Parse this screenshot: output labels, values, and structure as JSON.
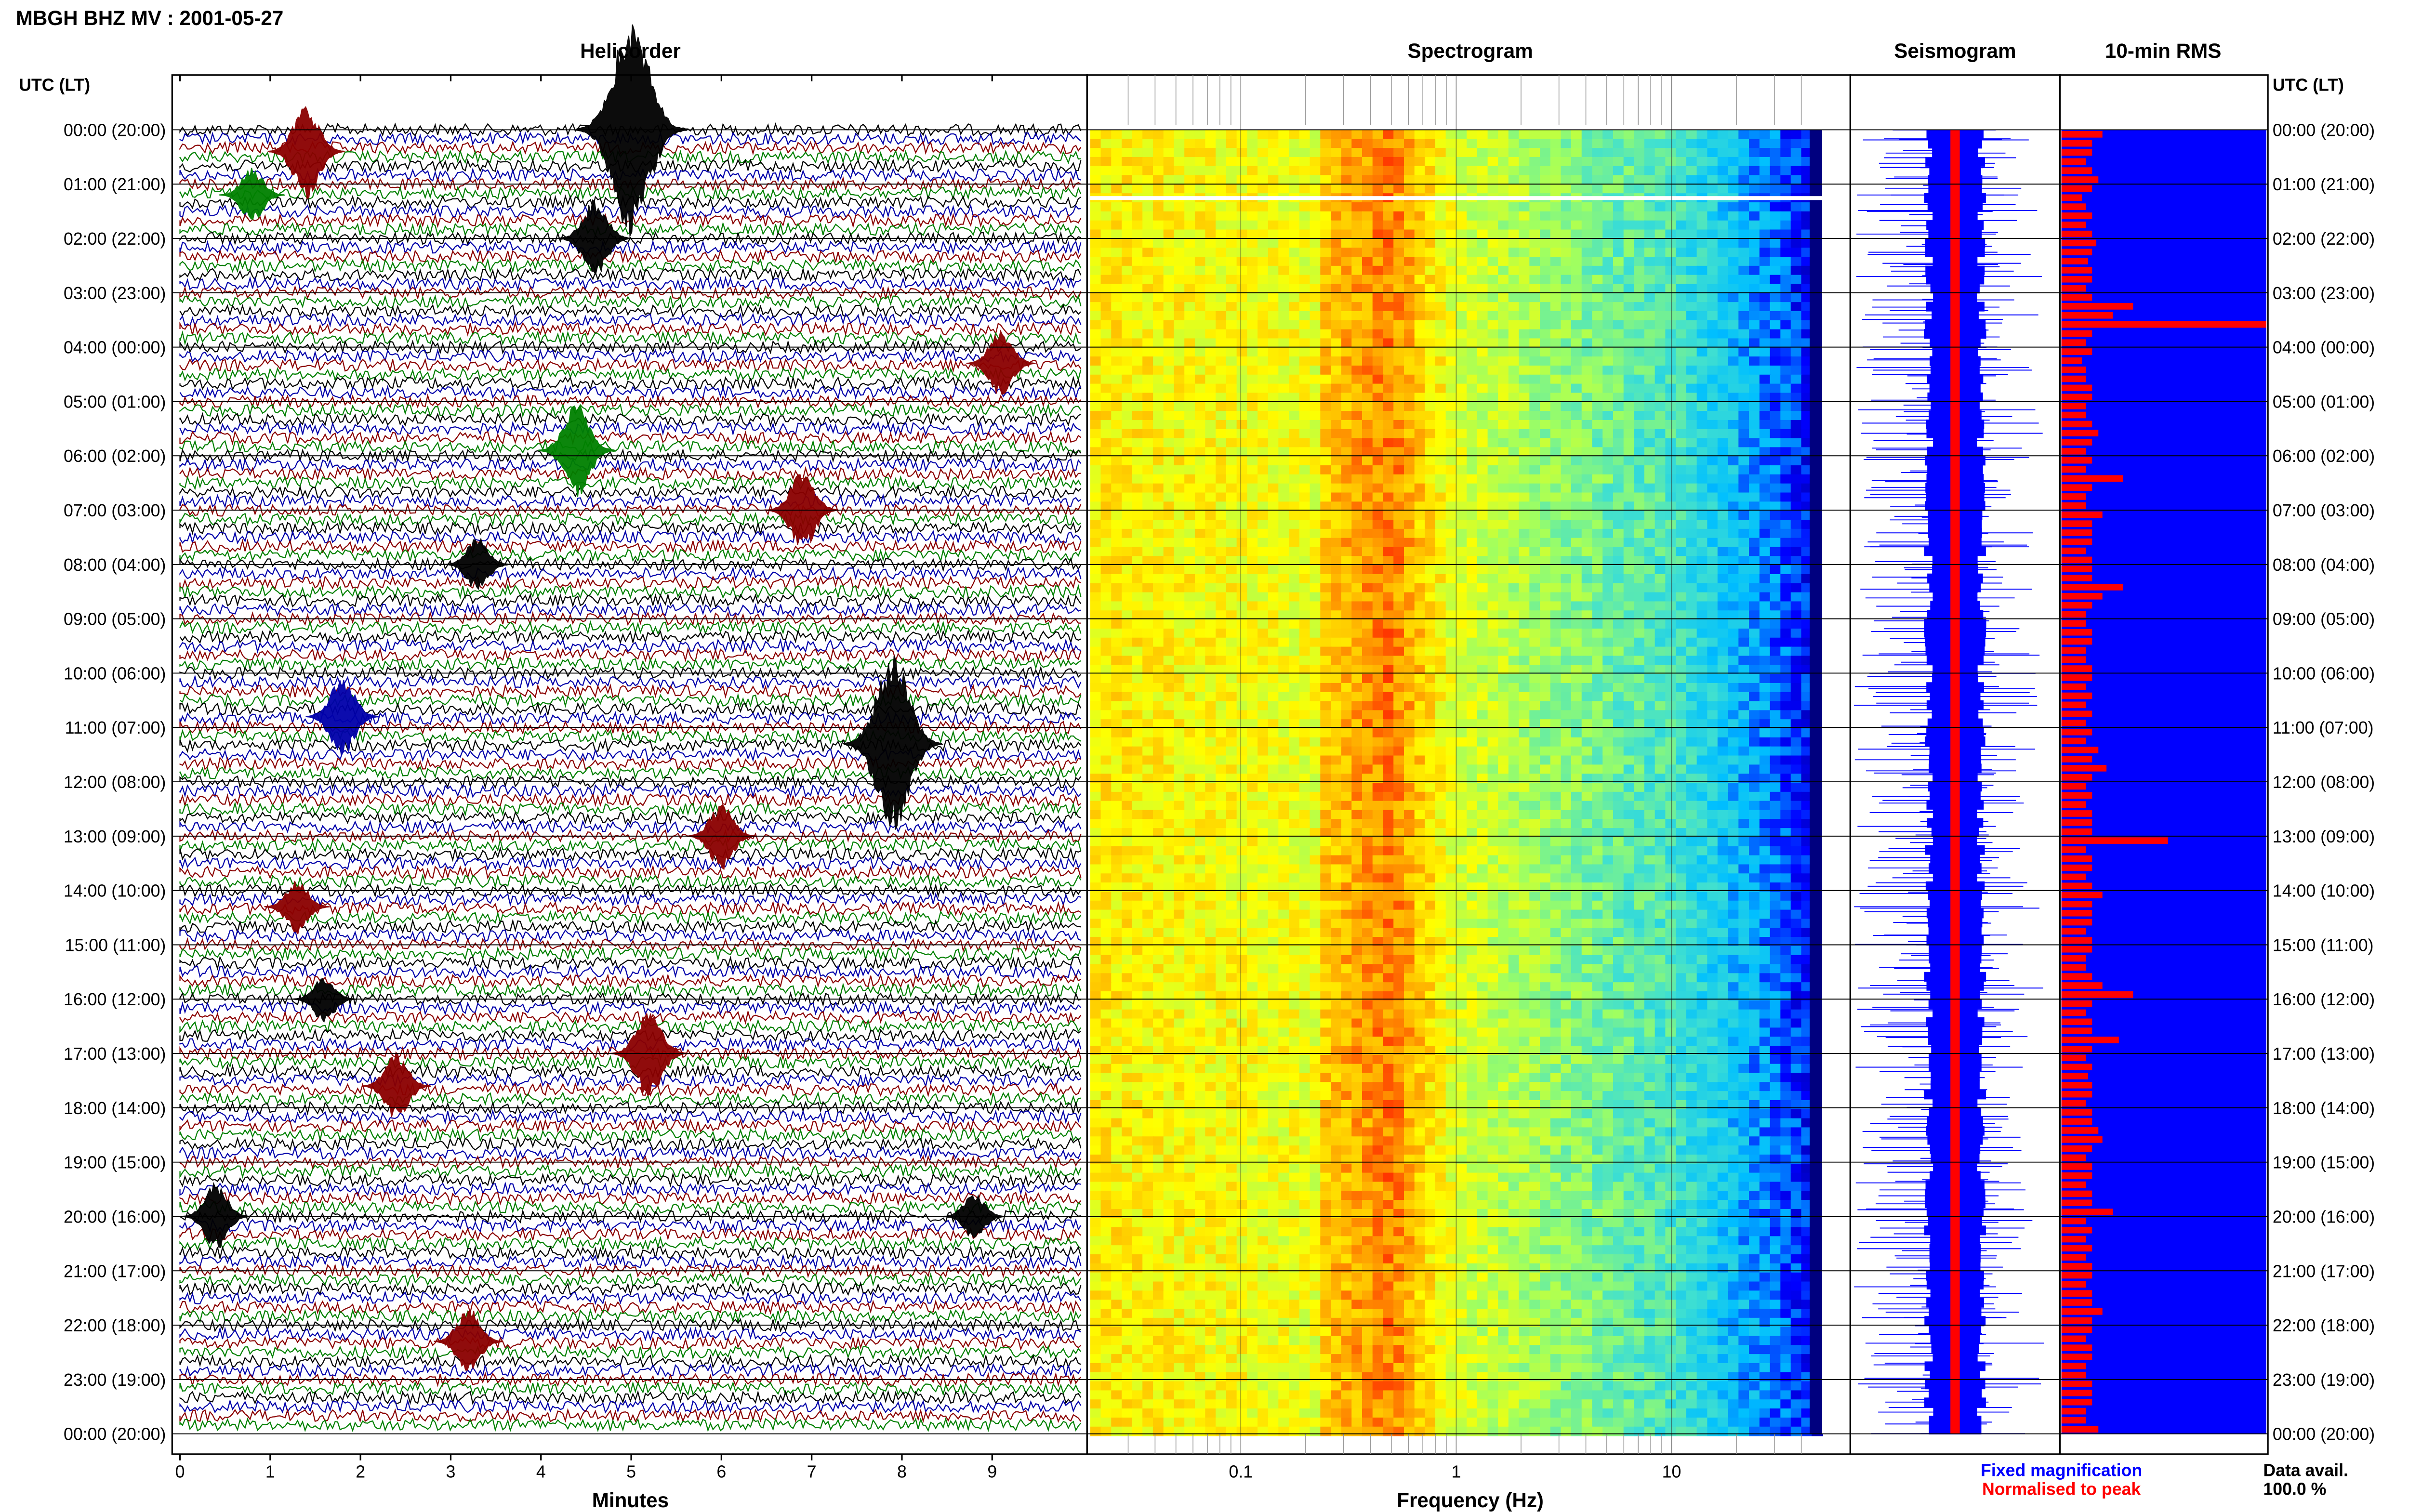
{
  "header": {
    "title": "MBGH BHZ MV : 2001-05-27"
  },
  "panels": {
    "helicorder": "Helicorder",
    "spectrogram": "Spectrogram",
    "seismogram": "Seismogram",
    "rms": "10-min RMS"
  },
  "axis_label": {
    "left": "UTC (LT)",
    "right": "UTC (LT)"
  },
  "legend": {
    "fixed": "Fixed magnification",
    "normalised": "Normalised to peak"
  },
  "data_avail": {
    "label": "Data avail.",
    "value": "100.0 %"
  },
  "colors": {
    "trace_cycle": [
      "#000000",
      "#0000aa",
      "#8b0000",
      "#008000"
    ],
    "seismogram_fixed": "#0000ff",
    "seismogram_normalised": "#ff0000",
    "rms_background": "#0000ff",
    "rms_bars": "#ff0000",
    "legend_fixed": "#0000ff",
    "legend_normalised": "#ff0000",
    "text": "#000000"
  },
  "chart_data": [
    {
      "type": "line",
      "title": "Helicorder",
      "xlabel": "Minutes",
      "ylabel": "UTC (LT)",
      "xlim": [
        0,
        10
      ],
      "x_ticks": [
        0,
        1,
        2,
        3,
        4,
        5,
        6,
        7,
        8,
        9
      ],
      "time_labels": [
        "00:00 (20:00)",
        "01:00 (21:00)",
        "02:00 (22:00)",
        "03:00 (23:00)",
        "04:00 (00:00)",
        "05:00 (01:00)",
        "06:00 (02:00)",
        "07:00 (03:00)",
        "08:00 (04:00)",
        "09:00 (05:00)",
        "10:00 (06:00)",
        "11:00 (07:00)",
        "12:00 (08:00)",
        "13:00 (09:00)",
        "14:00 (10:00)",
        "15:00 (11:00)",
        "16:00 (12:00)",
        "17:00 (13:00)",
        "18:00 (14:00)",
        "19:00 (15:00)",
        "20:00 (16:00)",
        "21:00 (17:00)",
        "22:00 (18:00)",
        "23:00 (19:00)",
        "00:00 (20:00)"
      ],
      "events": [
        {
          "hour": 0.0,
          "minute": 5.0,
          "amp": 3.2
        },
        {
          "hour": 0.4,
          "minute": 1.4,
          "amp": 1.4
        },
        {
          "hour": 1.2,
          "minute": 0.8,
          "amp": 0.8
        },
        {
          "hour": 2.0,
          "minute": 4.6,
          "amp": 1.2
        },
        {
          "hour": 4.3,
          "minute": 9.1,
          "amp": 1.0
        },
        {
          "hour": 5.9,
          "minute": 4.4,
          "amp": 1.4
        },
        {
          "hour": 7.0,
          "minute": 6.9,
          "amp": 1.2
        },
        {
          "hour": 8.0,
          "minute": 3.3,
          "amp": 0.8
        },
        {
          "hour": 10.8,
          "minute": 1.8,
          "amp": 1.2
        },
        {
          "hour": 11.3,
          "minute": 7.9,
          "amp": 2.6
        },
        {
          "hour": 13.0,
          "minute": 6.0,
          "amp": 1.0
        },
        {
          "hour": 14.3,
          "minute": 1.3,
          "amp": 0.8
        },
        {
          "hour": 16.0,
          "minute": 1.6,
          "amp": 0.7
        },
        {
          "hour": 17.0,
          "minute": 5.2,
          "amp": 1.4
        },
        {
          "hour": 17.6,
          "minute": 2.4,
          "amp": 1.0
        },
        {
          "hour": 20.0,
          "minute": 0.4,
          "amp": 1.0
        },
        {
          "hour": 20.0,
          "minute": 8.8,
          "amp": 0.7
        },
        {
          "hour": 22.3,
          "minute": 3.2,
          "amp": 1.0
        }
      ]
    },
    {
      "type": "heatmap",
      "title": "Spectrogram",
      "xlabel": "Frequency (Hz)",
      "x_scale": "log",
      "xlim": [
        0.02,
        50
      ],
      "x_tick_labels": [
        "0.1",
        "1",
        "10"
      ],
      "peak_band_hz": [
        0.2,
        0.5
      ],
      "colormap": [
        "#00007f",
        "#0000ff",
        "#00bfff",
        "#40e0d0",
        "#a0ff60",
        "#ffff00",
        "#ffa500",
        "#ff2000"
      ]
    },
    {
      "type": "line",
      "title": "Seismogram",
      "series": [
        {
          "name": "Fixed magnification"
        },
        {
          "name": "Normalised to peak"
        }
      ]
    },
    {
      "type": "bar",
      "title": "10-min RMS",
      "values": [
        0.2,
        0.15,
        0.15,
        0.12,
        0.15,
        0.18,
        0.15,
        0.1,
        0.12,
        0.15,
        0.12,
        0.15,
        0.17,
        0.15,
        0.13,
        0.15,
        0.15,
        0.12,
        0.15,
        0.35,
        0.25,
        1.0,
        0.15,
        0.12,
        0.15,
        0.1,
        0.12,
        0.12,
        0.15,
        0.15,
        0.12,
        0.12,
        0.15,
        0.18,
        0.15,
        0.12,
        0.15,
        0.12,
        0.3,
        0.15,
        0.12,
        0.12,
        0.2,
        0.15,
        0.15,
        0.15,
        0.12,
        0.15,
        0.15,
        0.15,
        0.3,
        0.2,
        0.15,
        0.12,
        0.12,
        0.15,
        0.15,
        0.12,
        0.12,
        0.15,
        0.15,
        0.12,
        0.15,
        0.12,
        0.15,
        0.12,
        0.15,
        0.12,
        0.18,
        0.15,
        0.22,
        0.15,
        0.12,
        0.15,
        0.12,
        0.15,
        0.15,
        0.15,
        0.52,
        0.12,
        0.15,
        0.15,
        0.12,
        0.15,
        0.2,
        0.15,
        0.15,
        0.15,
        0.12,
        0.15,
        0.15,
        0.12,
        0.12,
        0.15,
        0.2,
        0.35,
        0.15,
        0.12,
        0.15,
        0.15,
        0.28,
        0.15,
        0.12,
        0.15,
        0.13,
        0.15,
        0.15,
        0.12,
        0.15,
        0.15,
        0.18,
        0.2,
        0.15,
        0.12,
        0.15,
        0.15,
        0.12,
        0.15,
        0.15,
        0.25,
        0.12,
        0.15,
        0.12,
        0.15,
        0.12,
        0.15,
        0.15,
        0.12,
        0.15,
        0.15,
        0.2,
        0.15,
        0.15,
        0.12,
        0.15,
        0.15,
        0.12,
        0.12,
        0.15,
        0.15,
        0.15,
        0.12,
        0.12,
        0.18
      ]
    }
  ]
}
